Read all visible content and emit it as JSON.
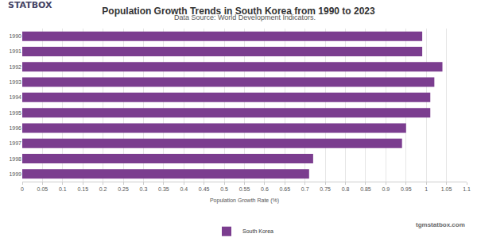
{
  "chart_data": {
    "type": "bar",
    "orientation": "horizontal",
    "title": "Population Growth Trends in South Korea from 1990 to 2023",
    "subtitle": "Data Source: World Development Indicators.",
    "xlabel": "Population Growth Rate (%)",
    "logo": "STATBOX",
    "watermark": "tgmstatbox.com",
    "categories": [
      "1990",
      "1991",
      "1992",
      "1993",
      "1994",
      "1995",
      "1996",
      "1997",
      "1998",
      "1999"
    ],
    "series": [
      {
        "name": "South Korea",
        "color": "#7b3d8f",
        "values": [
          0.99,
          0.99,
          1.04,
          1.02,
          1.01,
          1.01,
          0.95,
          0.94,
          0.72,
          0.71
        ]
      }
    ],
    "xlim": [
      0,
      1.1
    ],
    "xticks": [
      0,
      0.05,
      0.1,
      0.15,
      0.2,
      0.25,
      0.3,
      0.35,
      0.4,
      0.45,
      0.5,
      0.55,
      0.6,
      0.65,
      0.7,
      0.75,
      0.8,
      0.85,
      0.9,
      0.95,
      1,
      1.05,
      1.1
    ],
    "grid": true,
    "legend": "bottom"
  }
}
